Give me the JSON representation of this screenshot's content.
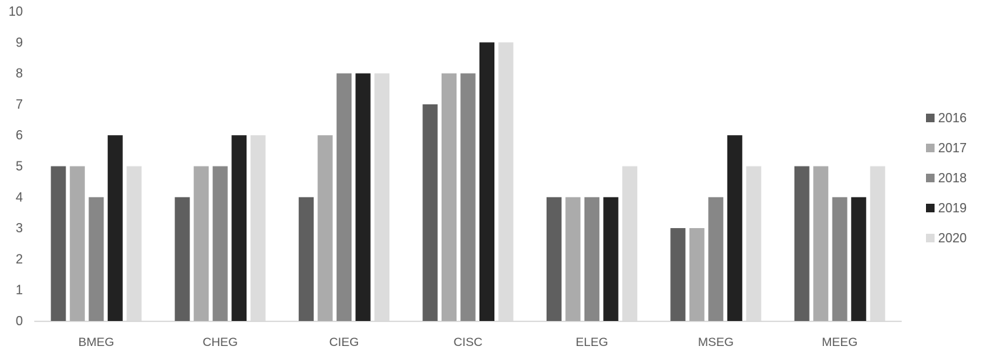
{
  "chart_data": {
    "type": "bar",
    "title": "",
    "xlabel": "",
    "ylabel": "",
    "categories": [
      "BMEG",
      "CHEG",
      "CIEG",
      "CISC",
      "ELEG",
      "MSEG",
      "MEEG"
    ],
    "series": [
      {
        "name": "2016",
        "color": "#5f5f5f",
        "values": [
          5,
          4,
          4,
          7,
          4,
          3,
          5
        ]
      },
      {
        "name": "2017",
        "color": "#ababab",
        "values": [
          5,
          5,
          6,
          8,
          4,
          3,
          5
        ]
      },
      {
        "name": "2018",
        "color": "#878787",
        "values": [
          4,
          5,
          8,
          8,
          4,
          4,
          4
        ]
      },
      {
        "name": "2019",
        "color": "#222222",
        "values": [
          6,
          6,
          8,
          9,
          4,
          6,
          4
        ]
      },
      {
        "name": "2020",
        "color": "#dcdcdc",
        "values": [
          5,
          6,
          8,
          9,
          5,
          5,
          5
        ]
      }
    ],
    "ylim": [
      0,
      10
    ],
    "yticks": [
      0,
      1,
      2,
      3,
      4,
      5,
      6,
      7,
      8,
      9,
      10
    ],
    "grid": false,
    "legend": "right"
  }
}
